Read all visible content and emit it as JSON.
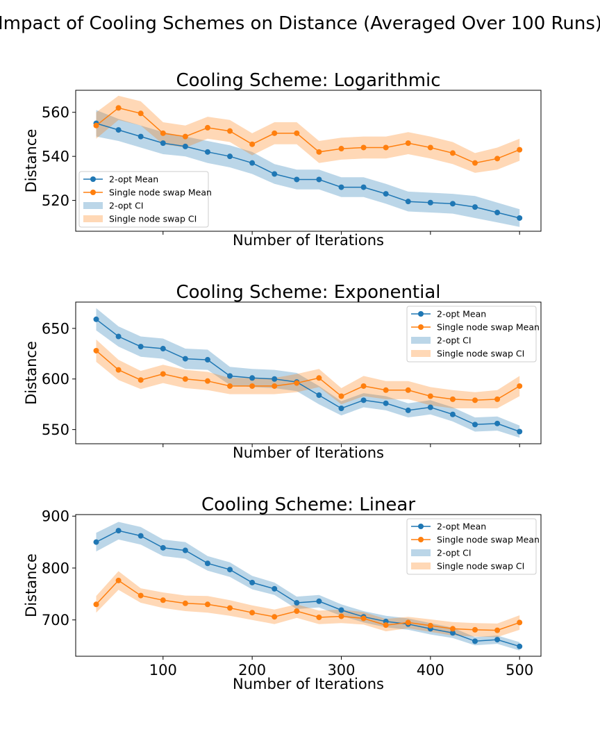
{
  "figure": {
    "suptitle": "Impact of Cooling Schemes on Distance (Averaged Over 100 Runs)"
  },
  "colors": {
    "two_opt": "#1f77b4",
    "single_node_swap": "#ff7f0e",
    "two_opt_ci": "#1f77b4",
    "single_node_swap_ci": "#ff7f0e"
  },
  "chart_data": [
    {
      "type": "line",
      "title": "Cooling Scheme: Logarithmic",
      "xlabel": "Number of Iterations",
      "ylabel": "Distance",
      "xlim": [
        2,
        524
      ],
      "ylim": [
        506,
        570
      ],
      "xticks": [
        100,
        200,
        300,
        400,
        500
      ],
      "show_xticklabels": false,
      "yticks": [
        520,
        540,
        560
      ],
      "legend_position": "lower-left",
      "legend": [
        "2-opt Mean",
        "Single node swap Mean",
        "2-opt CI",
        "Single node swap CI"
      ],
      "x": [
        25,
        50,
        75,
        100,
        125,
        150,
        175,
        200,
        225,
        250,
        275,
        300,
        325,
        350,
        375,
        400,
        425,
        450,
        475,
        500
      ],
      "series": [
        {
          "name": "2-opt Mean",
          "color": "#1f77b4",
          "values": [
            555,
            552,
            549,
            546,
            544.5,
            542,
            540,
            537,
            532,
            529.5,
            529.5,
            526,
            526,
            523,
            519.5,
            519,
            518.5,
            517,
            514.5,
            512
          ],
          "ci_lower": [
            549,
            547,
            544,
            541,
            540,
            537,
            535,
            532,
            527.5,
            525,
            525,
            521.5,
            521.5,
            518.5,
            515,
            514.5,
            514,
            512,
            510,
            508
          ],
          "ci_upper": [
            561,
            557,
            554,
            551,
            549,
            547,
            545,
            542,
            536.5,
            534,
            534,
            530.5,
            530.5,
            527.5,
            524,
            523.5,
            523,
            522,
            519,
            516
          ]
        },
        {
          "name": "Single node swap Mean",
          "color": "#ff7f0e",
          "values": [
            554,
            562,
            559.5,
            550.5,
            549,
            553,
            551.5,
            545.5,
            550.5,
            550.5,
            542,
            543.5,
            544,
            544,
            546,
            544,
            541.5,
            537,
            539,
            543
          ],
          "ci_lower": [
            548,
            556.5,
            554,
            545.5,
            544,
            548,
            546.5,
            540.5,
            545.5,
            545.5,
            537,
            538.5,
            539,
            539,
            541,
            539,
            536.5,
            532.5,
            534,
            538
          ],
          "ci_upper": [
            560,
            567.5,
            565,
            555.5,
            554,
            558,
            556.5,
            550.5,
            555.5,
            555.5,
            547,
            548.5,
            549,
            549,
            551,
            549,
            546.5,
            541.5,
            544,
            548
          ]
        }
      ]
    },
    {
      "type": "line",
      "title": "Cooling Scheme: Exponential",
      "xlabel": "Number of Iterations",
      "ylabel": "Distance",
      "xlim": [
        2,
        524
      ],
      "ylim": [
        536,
        676
      ],
      "xticks": [
        100,
        200,
        300,
        400,
        500
      ],
      "show_xticklabels": false,
      "yticks": [
        550,
        600,
        650
      ],
      "legend_position": "upper-right",
      "legend": [
        "2-opt Mean",
        "Single node swap Mean",
        "2-opt CI",
        "Single node swap CI"
      ],
      "x": [
        25,
        50,
        75,
        100,
        125,
        150,
        175,
        200,
        225,
        250,
        275,
        300,
        325,
        350,
        375,
        400,
        425,
        450,
        475,
        500
      ],
      "series": [
        {
          "name": "2-opt Mean",
          "color": "#1f77b4",
          "values": [
            659,
            642,
            632,
            630,
            620,
            619,
            603,
            601,
            600,
            597,
            584,
            571,
            579,
            576,
            569,
            572,
            565,
            555,
            556,
            548
          ],
          "ci_lower": [
            648,
            632,
            622,
            620,
            610,
            609,
            594,
            592,
            591,
            588,
            575,
            564,
            572,
            569,
            562,
            565,
            558,
            548,
            549,
            542
          ],
          "ci_upper": [
            670,
            652,
            642,
            640,
            630,
            629,
            612,
            610,
            609,
            606,
            593,
            578,
            586,
            583,
            576,
            579,
            572,
            562,
            563,
            554
          ]
        },
        {
          "name": "Single node swap Mean",
          "color": "#ff7f0e",
          "values": [
            628,
            609,
            599,
            605,
            600,
            598,
            593,
            593,
            593,
            596,
            601,
            583,
            593,
            589,
            589,
            583,
            580,
            579,
            580,
            593
          ],
          "ci_lower": [
            617,
            599,
            590,
            596,
            591,
            589,
            585,
            585,
            585,
            587,
            592,
            575,
            583,
            580,
            580,
            574,
            571,
            571,
            571,
            583
          ],
          "ci_upper": [
            639,
            619,
            608,
            614,
            609,
            607,
            601,
            601,
            601,
            605,
            610,
            591,
            603,
            598,
            598,
            592,
            589,
            587,
            589,
            603
          ]
        }
      ]
    },
    {
      "type": "line",
      "title": "Cooling Scheme: Linear",
      "xlabel": "Number of Iterations",
      "ylabel": "Distance",
      "xlim": [
        2,
        524
      ],
      "ylim": [
        630,
        903
      ],
      "xticks": [
        100,
        200,
        300,
        400,
        500
      ],
      "show_xticklabels": true,
      "yticks": [
        700,
        800,
        900
      ],
      "legend_position": "upper-right",
      "legend": [
        "2-opt Mean",
        "Single node swap Mean",
        "2-opt CI",
        "Single node swap CI"
      ],
      "x": [
        25,
        50,
        75,
        100,
        125,
        150,
        175,
        200,
        225,
        250,
        275,
        300,
        325,
        350,
        375,
        400,
        425,
        450,
        475,
        500
      ],
      "series": [
        {
          "name": "2-opt Mean",
          "color": "#1f77b4",
          "values": [
            850,
            872,
            862,
            839,
            834,
            809,
            797,
            772,
            760,
            733,
            736,
            719,
            706,
            697,
            692,
            683,
            675,
            659,
            662,
            649
          ],
          "ci_lower": [
            832,
            855,
            845,
            823,
            818,
            795,
            783,
            759,
            748,
            721,
            724,
            708,
            695,
            686,
            681,
            672,
            665,
            651,
            654,
            641
          ],
          "ci_upper": [
            868,
            889,
            879,
            855,
            850,
            823,
            811,
            785,
            772,
            745,
            748,
            730,
            717,
            708,
            703,
            694,
            685,
            667,
            670,
            657
          ]
        },
        {
          "name": "Single node swap Mean",
          "color": "#ff7f0e",
          "values": [
            730,
            776,
            747,
            738,
            732,
            730,
            723,
            714,
            706,
            717,
            705,
            707,
            703,
            690,
            695,
            689,
            683,
            681,
            680,
            695
          ],
          "ci_lower": [
            714,
            758,
            733,
            723,
            717,
            714,
            708,
            700,
            692,
            704,
            692,
            694,
            691,
            678,
            684,
            677,
            670,
            668,
            667,
            681
          ],
          "ci_upper": [
            746,
            794,
            761,
            753,
            747,
            746,
            738,
            728,
            720,
            730,
            718,
            720,
            715,
            702,
            706,
            701,
            696,
            694,
            693,
            709
          ]
        }
      ]
    }
  ]
}
